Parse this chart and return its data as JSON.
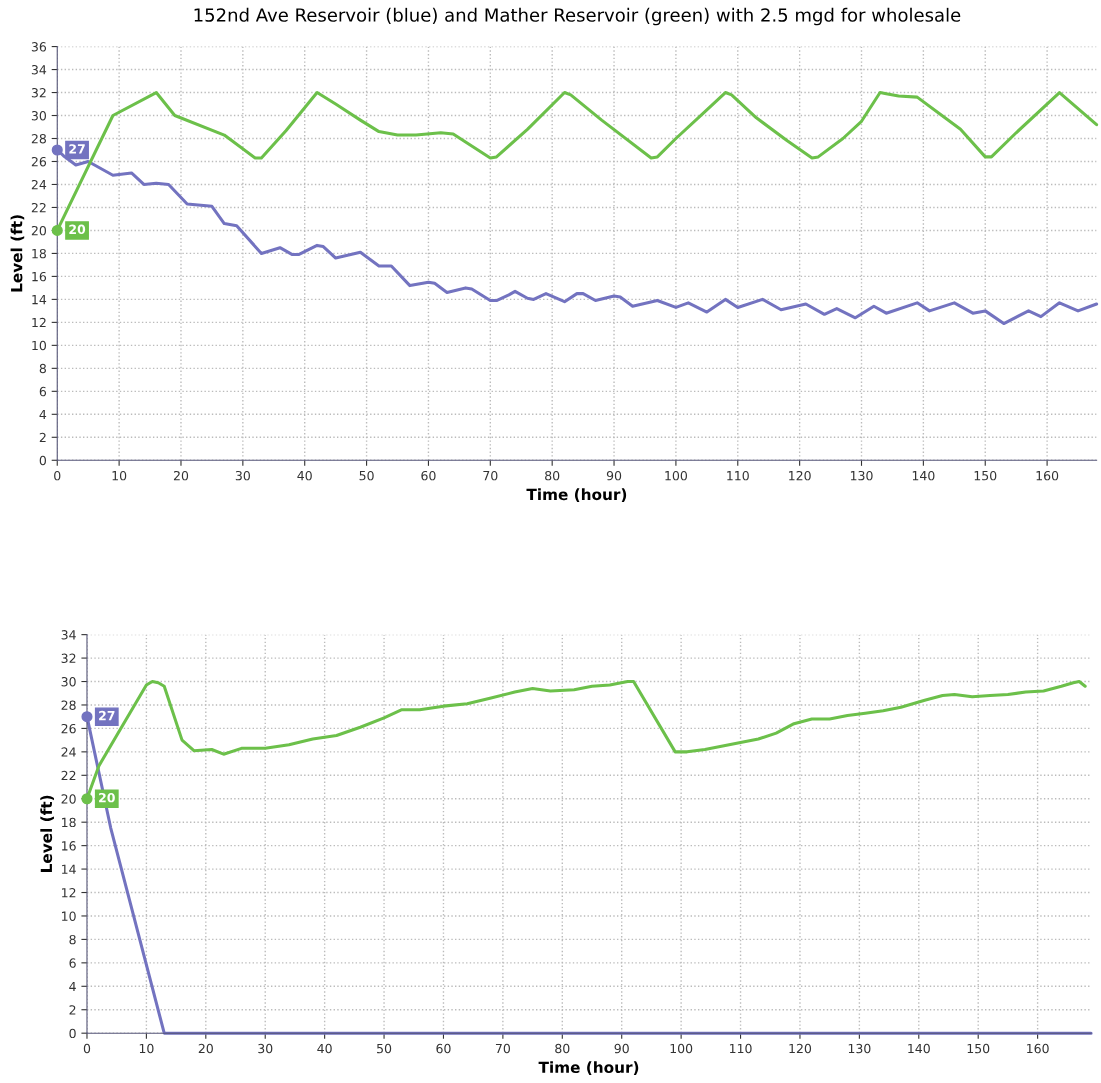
{
  "chart_data": [
    {
      "type": "line",
      "title": "152nd Ave Reservoir (blue) and Mather Reservoir (green) with 2.5 mgd for wholesale",
      "xlabel": "Time (hour)",
      "ylabel": "Level (ft)",
      "xlim": [
        0,
        168
      ],
      "ylim": [
        0,
        36
      ],
      "xticks": [
        0,
        10,
        20,
        30,
        40,
        50,
        60,
        70,
        80,
        90,
        100,
        110,
        120,
        130,
        140,
        150,
        160
      ],
      "yticks": [
        0,
        2,
        4,
        6,
        8,
        10,
        12,
        14,
        16,
        18,
        20,
        22,
        24,
        26,
        28,
        30,
        32,
        34,
        36
      ],
      "grid": true,
      "line_style": "solid",
      "annotations": [
        "27",
        "20"
      ],
      "series": [
        {
          "color": "#7373c0",
          "x": [
            0,
            1,
            3,
            5,
            9,
            12,
            14,
            16,
            18,
            21,
            25,
            27,
            29,
            33,
            36,
            38,
            39,
            42,
            43,
            45,
            49,
            52,
            54,
            57,
            60,
            61,
            63,
            66,
            67,
            70,
            71,
            73,
            74,
            76,
            77,
            79,
            82,
            84,
            85,
            87,
            90,
            91,
            93,
            97,
            100,
            102,
            105,
            108,
            110,
            114,
            117,
            121,
            124,
            126,
            129,
            132,
            134,
            139,
            141,
            145,
            148,
            150,
            153,
            157,
            159,
            162,
            165,
            168
          ],
          "values": [
            27,
            26.5,
            25.7,
            26,
            24.8,
            25,
            24,
            24.1,
            24,
            22.3,
            22.1,
            20.6,
            20.4,
            18,
            18.5,
            17.9,
            17.9,
            18.7,
            18.6,
            17.6,
            18.1,
            16.9,
            16.9,
            15.2,
            15.5,
            15.4,
            14.6,
            15,
            14.9,
            13.9,
            13.9,
            14.4,
            14.7,
            14.1,
            14,
            14.5,
            13.8,
            14.5,
            14.5,
            13.9,
            14.3,
            14.2,
            13.4,
            13.9,
            13.3,
            13.7,
            12.9,
            14,
            13.3,
            14,
            13.1,
            13.6,
            12.7,
            13.2,
            12.4,
            13.4,
            12.8,
            13.7,
            13,
            13.7,
            12.8,
            13,
            11.9,
            13,
            12.5,
            13.7,
            13,
            13.6
          ]
        },
        {
          "color": "#6cc04a",
          "x": [
            0,
            9,
            16,
            19,
            27,
            32,
            33,
            37,
            42,
            45,
            49,
            52,
            55,
            58,
            62,
            64,
            70,
            71,
            76,
            82,
            83,
            88,
            96,
            97,
            100,
            104,
            108,
            109,
            113,
            118,
            122,
            123,
            127,
            130,
            133,
            134,
            136,
            139,
            143,
            146,
            150,
            151,
            155,
            162,
            168
          ],
          "values": [
            20,
            30,
            32,
            30,
            28.3,
            26.3,
            26.3,
            28.7,
            32,
            31,
            29.6,
            28.6,
            28.3,
            28.3,
            28.5,
            28.4,
            26.3,
            26.4,
            28.8,
            32,
            31.8,
            29.6,
            26.3,
            26.4,
            28,
            30,
            32,
            31.8,
            29.8,
            27.8,
            26.3,
            26.4,
            28,
            29.5,
            32,
            31.9,
            31.7,
            31.6,
            30,
            28.8,
            26.4,
            26.4,
            28.5,
            32,
            29.2
          ]
        }
      ]
    },
    {
      "type": "line",
      "xlabel": "Time (hour)",
      "ylabel": "Level (ft)",
      "xlim": [
        0,
        169
      ],
      "ylim": [
        0,
        34
      ],
      "xticks": [
        0,
        10,
        20,
        30,
        40,
        50,
        60,
        70,
        80,
        90,
        100,
        110,
        120,
        130,
        140,
        150,
        160
      ],
      "yticks": [
        0,
        2,
        4,
        6,
        8,
        10,
        12,
        14,
        16,
        18,
        20,
        22,
        24,
        26,
        28,
        30,
        32,
        34
      ],
      "grid": true,
      "line_style": "solid",
      "annotations": [
        "27",
        "20"
      ],
      "series": [
        {
          "color": "#7373c0",
          "x": [
            0,
            4,
            13,
            169
          ],
          "values": [
            27,
            17.5,
            0,
            0
          ]
        },
        {
          "color": "#6cc04a",
          "x": [
            0,
            2,
            5,
            10,
            11,
            12,
            13,
            16,
            18,
            21,
            23,
            26,
            30,
            34,
            38,
            42,
            46,
            50,
            53,
            56,
            60,
            64,
            68,
            72,
            75,
            78,
            82,
            85,
            88,
            91,
            92,
            99,
            101,
            104,
            107,
            110,
            113,
            116,
            119,
            122,
            125,
            128,
            131,
            134,
            137,
            141,
            144,
            146,
            149,
            152,
            155,
            158,
            161,
            164,
            166,
            167,
            168
          ],
          "values": [
            20,
            22.8,
            25.4,
            29.7,
            30,
            29.9,
            29.6,
            25,
            24.1,
            24.2,
            23.8,
            24.3,
            24.3,
            24.6,
            25.1,
            25.4,
            26.1,
            26.9,
            27.6,
            27.6,
            27.9,
            28.1,
            28.6,
            29.1,
            29.4,
            29.2,
            29.3,
            29.6,
            29.7,
            30,
            30,
            24,
            24,
            24.2,
            24.5,
            24.8,
            25.1,
            25.6,
            26.4,
            26.8,
            26.8,
            27.1,
            27.3,
            27.5,
            27.8,
            28.4,
            28.8,
            28.9,
            28.7,
            28.8,
            28.9,
            29.1,
            29.2,
            29.6,
            29.9,
            30,
            29.6
          ]
        }
      ]
    }
  ]
}
